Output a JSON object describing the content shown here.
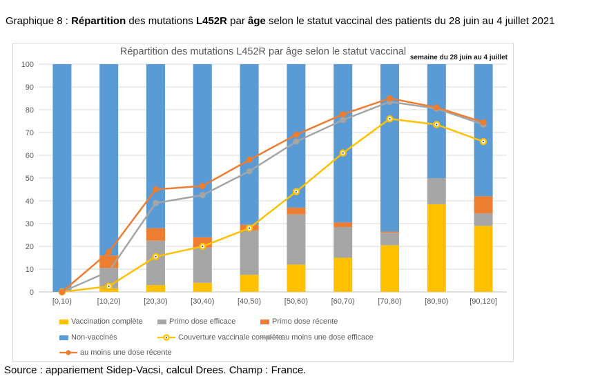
{
  "caption_segments": [
    {
      "text": "Graphique 8 : ",
      "bold": false
    },
    {
      "text": "Répartition",
      "bold": true
    },
    {
      "text": " des mutations ",
      "bold": false
    },
    {
      "text": "L452R",
      "bold": true
    },
    {
      "text": " par ",
      "bold": false
    },
    {
      "text": "âge",
      "bold": true
    },
    {
      "text": " selon le statut vaccinal des patients du 28 juin au 4 juillet 2021",
      "bold": false
    }
  ],
  "source_text": "Source : appariement Sidep-Vacsi, calcul Drees. Champ : France.",
  "chart_data": {
    "type": "combo-stacked-bar-and-line",
    "title": "Répartition des mutations L452R par âge selon le statut vaccinal",
    "subtitle": "semaine du 28 juin au 4 juillet",
    "categories": [
      "[0,10)",
      "[10,20)",
      "[20,30)",
      "[30,40)",
      "[40,50)",
      "[50,60)",
      "[60,70)",
      "[70,80)",
      "[80,90)",
      "[90,120]"
    ],
    "ylim": [
      0,
      100
    ],
    "ytick_step": 10,
    "grid": true,
    "legend_position": "bottom",
    "bar_series": [
      {
        "name": "Vaccination complète",
        "color": "#FFC000",
        "values": [
          0,
          1.5,
          3,
          4,
          7.5,
          12,
          15,
          20.5,
          38.5,
          29
        ]
      },
      {
        "name": "Primo dose efficace",
        "color": "#A6A6A6",
        "values": [
          0,
          9,
          19.5,
          15.5,
          19.5,
          22,
          13.5,
          5.5,
          11.5,
          5.5
        ]
      },
      {
        "name": "Primo dose récente",
        "color": "#ED7D31",
        "values": [
          0,
          5.5,
          5.5,
          4.5,
          2.5,
          3,
          2,
          0.5,
          0,
          7.5
        ]
      },
      {
        "name": "Non-vaccinés",
        "color": "#5B9BD5",
        "values": [
          100,
          84,
          72,
          76,
          70.5,
          63,
          69.5,
          73.5,
          50,
          58
        ]
      }
    ],
    "line_series": [
      {
        "name": "Couverture vaccinale complète",
        "color": "#FFC000",
        "marker": "donut",
        "values": [
          0,
          2.5,
          15.5,
          20,
          28,
          44,
          61,
          76,
          73.5,
          66
        ]
      },
      {
        "name": "au moins une dose efficace",
        "color": "#A5A5A5",
        "marker": "circle",
        "values": [
          0,
          9,
          39,
          42.5,
          53,
          66,
          75.5,
          83.5,
          80.5,
          73.5
        ]
      },
      {
        "name": "au moins une dose récente",
        "color": "#ED7D31",
        "marker": "circle",
        "values": [
          0,
          17.5,
          45,
          46.5,
          58,
          69,
          78,
          85,
          81,
          74.5
        ]
      }
    ],
    "colors": {
      "gridline": "#d9d9d9",
      "zero_line": "#bfbfbf",
      "axis_text": "#595959",
      "marker_dot": "#555555"
    }
  }
}
